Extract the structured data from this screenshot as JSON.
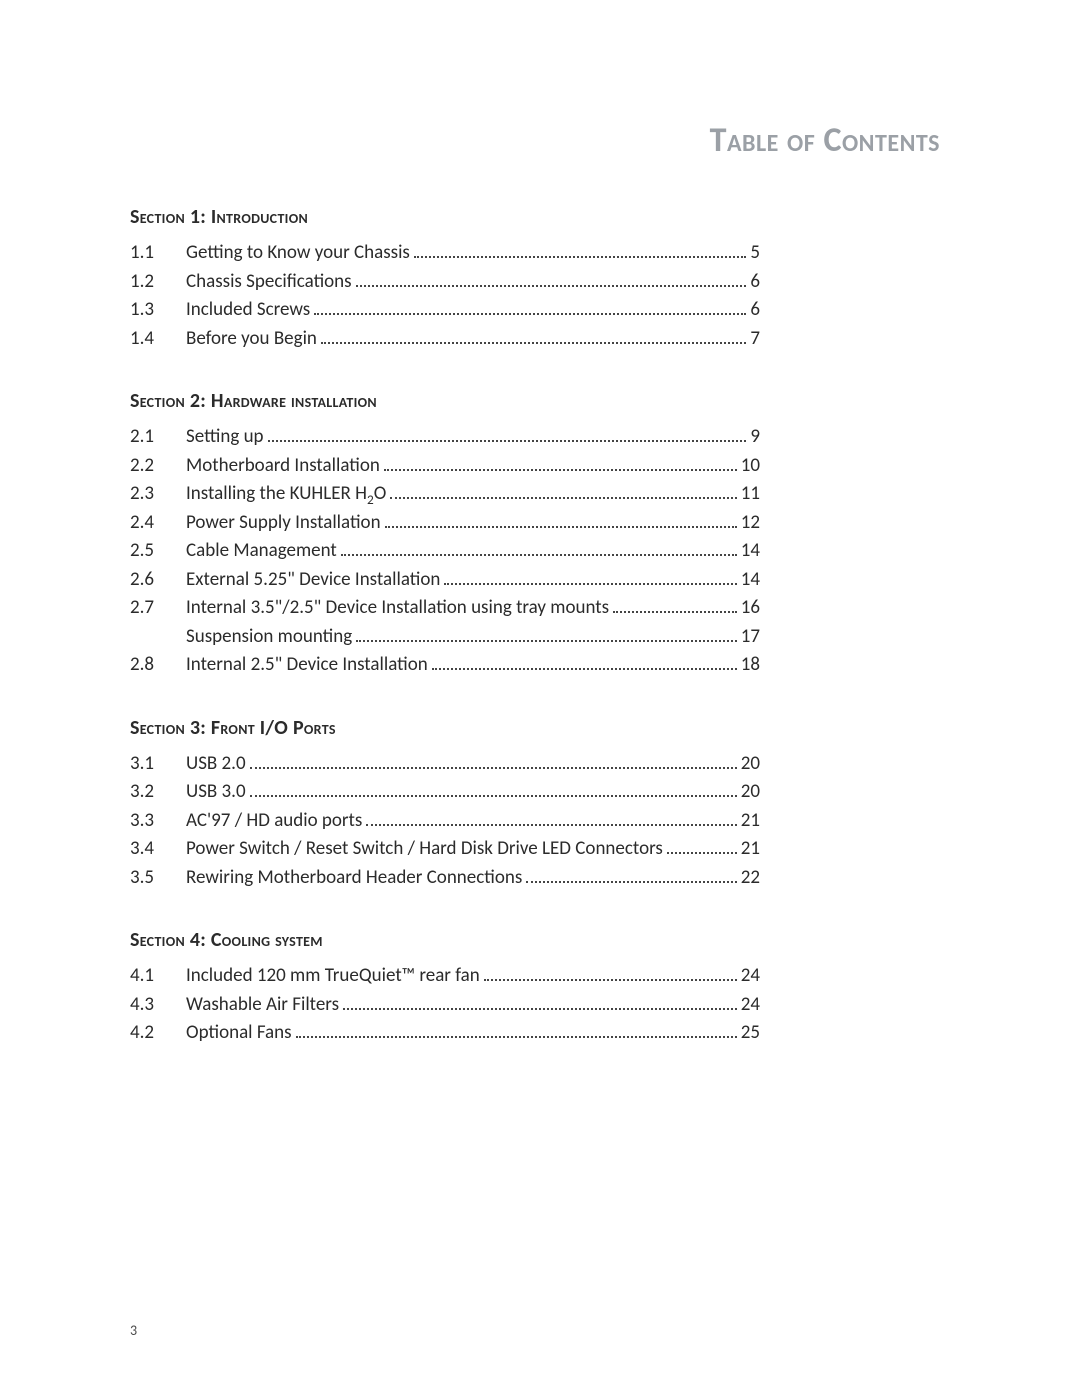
{
  "title": "Table of Contents",
  "page_number": "3",
  "colors": {
    "title_color": "#9ba0a6",
    "text_color": "#2b2b2b",
    "background": "#ffffff"
  },
  "typography": {
    "title_fontsize": 34,
    "heading_fontsize": 20,
    "body_fontsize": 19,
    "font_family": "Calibri"
  },
  "sections": [
    {
      "heading": "Section 1: Introduction",
      "items": [
        {
          "num": "1.1",
          "label": "Getting to Know your Chassis",
          "page": "5"
        },
        {
          "num": "1.2",
          "label": "Chassis Specifications",
          "page": "6"
        },
        {
          "num": "1.3",
          "label": "Included Screws",
          "page": "6"
        },
        {
          "num": "1.4",
          "label": "Before you Begin",
          "page": "7"
        }
      ]
    },
    {
      "heading": "Section 2: Hardware installation",
      "items": [
        {
          "num": "2.1",
          "label": "Setting up",
          "page": "9"
        },
        {
          "num": "2.2",
          "label": "Motherboard Installation",
          "page": "10"
        },
        {
          "num": "2.3",
          "label": "Installing the KUHLER H₂O",
          "page": "11",
          "has_subscript": true,
          "prefix": "Installing the KUHLER H",
          "sub": "2",
          "suffix": "O"
        },
        {
          "num": "2.4",
          "label": "Power Supply Installation",
          "page": "12"
        },
        {
          "num": "2.5",
          "label": "Cable Management",
          "page": "14"
        },
        {
          "num": "2.6",
          "label": "External 5.25\" Device Installation",
          "page": "14"
        },
        {
          "num": "2.7",
          "label": "Internal 3.5\"/2.5\" Device Installation using tray mounts",
          "page": "16"
        },
        {
          "num": "",
          "label": "Suspension mounting",
          "page": "17"
        },
        {
          "num": "2.8",
          "label": "Internal 2.5\" Device Installation",
          "page": "18"
        }
      ]
    },
    {
      "heading": "Section 3: Front I/O Ports",
      "items": [
        {
          "num": "3.1",
          "label": "USB 2.0",
          "page": "20"
        },
        {
          "num": "3.2",
          "label": "USB 3.0",
          "page": "20"
        },
        {
          "num": "3.3",
          "label": "AC'97 / HD audio ports",
          "page": "21"
        },
        {
          "num": "3.4",
          "label": "Power Switch / Reset Switch / Hard Disk Drive LED Connectors",
          "page": "21"
        },
        {
          "num": "3.5",
          "label": "Rewiring Motherboard Header Connections",
          "page": "22"
        }
      ]
    },
    {
      "heading": "Section 4: Cooling system",
      "items": [
        {
          "num": "4.1",
          "label": "Included 120 mm TrueQuiet™ rear fan",
          "page": "24"
        },
        {
          "num": "4.3",
          "label": "Washable Air Filters",
          "page": "24"
        },
        {
          "num": "4.2",
          "label": "Optional Fans",
          "page": "25"
        }
      ]
    }
  ]
}
